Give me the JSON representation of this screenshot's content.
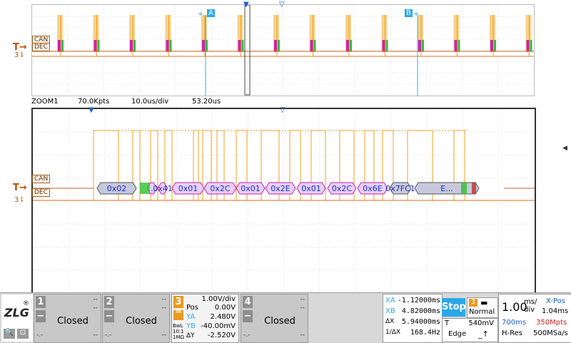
{
  "channels_labels": {
    "can": "CAN",
    "dec": "DEC",
    "trigger_symbol": "T",
    "ch3_marker": "3"
  },
  "cursors": {
    "a": "A",
    "b": "B"
  },
  "zoom_info": {
    "name": "ZOOM1",
    "points": "70.0Kpts",
    "timebase": "10.0us/div",
    "position": "53.20us"
  },
  "decode": [
    "0x02",
    "...",
    "0x41",
    "0x01",
    "0x2C",
    "0x01",
    "0x2E",
    "0x01",
    "0x2C",
    "0x6E",
    "0x7FC1",
    "E..."
  ],
  "channel_panels": [
    {
      "num": "1",
      "state": "Closed",
      "dash1": "--",
      "dash2": "--",
      "dash3": "-.-",
      "dash4": "--"
    },
    {
      "num": "2",
      "state": "Closed",
      "dash1": "--",
      "dash2": "--",
      "dash3": "-.-",
      "dash4": "--"
    },
    {
      "num": "4",
      "state": "Closed",
      "dash1": "--",
      "dash2": "--",
      "dash3": "-.-",
      "dash4": "--"
    }
  ],
  "ch3": {
    "num": "3",
    "vdiv": "1.00V/div",
    "pos_label": "Pos",
    "pos_val": "0.00V",
    "ya_label": "YA",
    "ya_val": "2.480V",
    "yb_label": "YB",
    "yb_val": "-40.00mV",
    "dy_label": "ΔY",
    "dy_val": "-2.520V",
    "bwl": "BwL",
    "ratio": "10:1",
    "imp": "1MΩ"
  },
  "measure": {
    "xa_label": "XA",
    "xa_val": "-1.12000ms",
    "xb_label": "XB",
    "xb_val": "4.82000ms",
    "dx_label": "ΔX",
    "dx_val": "5.94000ms",
    "inv_label": "1/ΔX",
    "inv_val": "168.4Hz"
  },
  "acq": {
    "stop": "Stop",
    "trig_ch": "3",
    "mode": "Normal",
    "t_label": "T",
    "t_level": "540mV",
    "edge": "Edge"
  },
  "timebase": {
    "value": "1.00",
    "unit_top": "ms/",
    "unit_bot": "div",
    "xpos_label": "X-Pos",
    "xpos_val": "1.04ms",
    "len": "700ms",
    "mpts": "350Mpts",
    "hres": "H-Res",
    "rate": "500MSa/s"
  },
  "brand": {
    "logo": "ZLG",
    "reg": "®"
  },
  "colors": {
    "trace": "#f0a020",
    "cursor": "#30b0c8",
    "can_frame": "#c03030",
    "decode_fill": "#e6d0f8",
    "decode_border": "#d020b0",
    "accent": "#2ba8e8"
  }
}
